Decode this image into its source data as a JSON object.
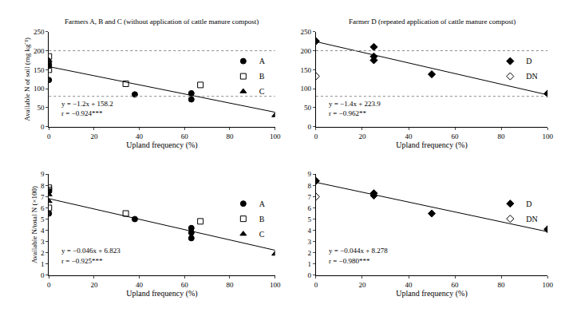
{
  "chart_data": [
    {
      "type": "scatter",
      "title": "Farmers A, B and C (without application of cattle manure compost)",
      "x_label": "Upland frequency (%)",
      "y_label": "Available N of soil (mg kg⁻¹)",
      "xlim": [
        0,
        100
      ],
      "xticks": [
        0,
        20,
        40,
        60,
        80,
        100
      ],
      "ylim": [
        0,
        250
      ],
      "yticks": [
        0,
        50,
        100,
        150,
        200,
        250
      ],
      "legend": "upper right",
      "reference_lines": {
        "values": [
          80,
          200
        ],
        "line_style": "dotted",
        "color": "#888888"
      },
      "annotations": [
        "y = −1.2x + 158.2",
        "r = −0.924***"
      ],
      "series": [
        {
          "name": "A",
          "marker": "circle",
          "color": "#000000",
          "x": [
            0,
            0,
            0,
            38,
            63,
            63
          ],
          "values": [
            160,
            165,
            123,
            85,
            88,
            72
          ]
        },
        {
          "name": "B",
          "marker": "square-open",
          "color": "#000000",
          "x": [
            0,
            0,
            34,
            67
          ],
          "values": [
            185,
            150,
            113,
            110
          ]
        },
        {
          "name": "C",
          "marker": "triangle-up",
          "color": "#000000",
          "x": [
            0,
            100
          ],
          "values": [
            175,
            30
          ]
        },
        {
          "type": "line",
          "color": "#000000",
          "x": [
            0,
            100
          ],
          "values": [
            158.2,
            38.2
          ]
        }
      ]
    },
    {
      "type": "scatter",
      "title": "Farmer D (repeated application of cattle manure compost)",
      "x_label": "Upland frequency (%)",
      "xlim": [
        0,
        100
      ],
      "xticks": [
        0,
        20,
        40,
        60,
        80,
        100
      ],
      "ylim": [
        0,
        250
      ],
      "yticks": [
        0,
        50,
        100,
        150,
        200,
        250
      ],
      "legend": "upper right",
      "reference_lines": {
        "values": [
          80,
          200
        ],
        "line_style": "dotted",
        "color": "#888888"
      },
      "annotations": [
        "y = −1.4x + 223.9",
        "r = −0.962**"
      ],
      "series": [
        {
          "name": "D",
          "marker": "diamond",
          "color": "#000000",
          "x": [
            0,
            25,
            25,
            25,
            50,
            100
          ],
          "values": [
            225,
            210,
            185,
            175,
            138,
            87
          ]
        },
        {
          "name": "DN",
          "marker": "diamond-open",
          "color": "#000000",
          "x": [
            0
          ],
          "values": [
            133
          ]
        },
        {
          "type": "line",
          "color": "#000000",
          "x": [
            0,
            100
          ],
          "values": [
            223.9,
            83.9
          ]
        }
      ]
    },
    {
      "type": "scatter",
      "x_label": "Upland frequency (%)",
      "y_label": "Available N/total N (×100)",
      "xlim": [
        0,
        100
      ],
      "xticks": [
        0,
        20,
        40,
        60,
        80,
        100
      ],
      "ylim": [
        0,
        9
      ],
      "yticks": [
        0,
        1,
        2,
        3,
        4,
        5,
        6,
        7,
        8,
        9
      ],
      "legend": "upper right",
      "annotations": [
        "y = −0.046x + 6.823",
        "r = −0.925***"
      ],
      "series": [
        {
          "name": "A",
          "marker": "circle",
          "color": "#000000",
          "x": [
            0,
            0,
            38,
            63,
            63,
            63
          ],
          "values": [
            5.5,
            7.5,
            5.0,
            4.2,
            3.8,
            3.3
          ]
        },
        {
          "name": "B",
          "marker": "square-open",
          "color": "#000000",
          "x": [
            0,
            0,
            0,
            34,
            67
          ],
          "values": [
            7.8,
            7.6,
            6.0,
            5.5,
            4.8
          ]
        },
        {
          "name": "C",
          "marker": "triangle-up",
          "color": "#000000",
          "x": [
            0,
            0,
            100
          ],
          "values": [
            7.2,
            6.6,
            1.9
          ]
        },
        {
          "type": "line",
          "color": "#000000",
          "x": [
            0,
            100
          ],
          "values": [
            6.823,
            2.223
          ]
        }
      ]
    },
    {
      "type": "scatter",
      "x_label": "Upland frequency (%)",
      "xlim": [
        0,
        100
      ],
      "xticks": [
        0,
        20,
        40,
        60,
        80,
        100
      ],
      "ylim": [
        0,
        9
      ],
      "yticks": [
        0,
        1,
        2,
        3,
        4,
        5,
        6,
        7,
        8,
        9
      ],
      "legend": "upper right",
      "annotations": [
        "y = −0.044x + 8.278",
        "r = −0.980***"
      ],
      "series": [
        {
          "name": "D",
          "marker": "diamond",
          "color": "#000000",
          "x": [
            0,
            25,
            25,
            50,
            100
          ],
          "values": [
            8.4,
            7.3,
            7.1,
            5.5,
            4.1
          ]
        },
        {
          "name": "DN",
          "marker": "diamond-open",
          "color": "#000000",
          "x": [
            0
          ],
          "values": [
            7.0
          ]
        },
        {
          "type": "line",
          "color": "#000000",
          "x": [
            0,
            100
          ],
          "values": [
            8.278,
            3.878
          ]
        }
      ]
    }
  ]
}
